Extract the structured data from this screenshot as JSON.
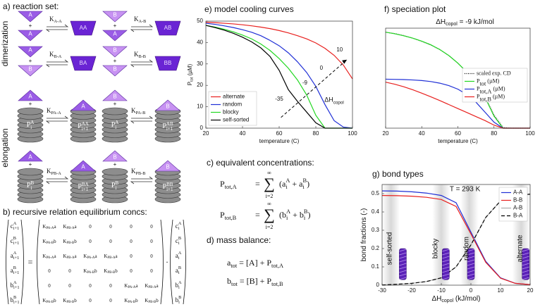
{
  "reaction_set": {
    "title": "a) reaction set:",
    "dimerization_label": "dimerization",
    "elongation_label": "elongation",
    "plus": "+",
    "dimerization": [
      {
        "reactants": [
          "A",
          "A"
        ],
        "constant": "K_{A-A}",
        "product": "AA"
      },
      {
        "reactants": [
          "B",
          "A"
        ],
        "constant": "K_{A-B}",
        "product": "AB"
      },
      {
        "reactants": [
          "A",
          "B"
        ],
        "constant": "K_{B-A}",
        "product": "BA"
      },
      {
        "reactants": [
          "B",
          "B"
        ],
        "constant": "K_{B-B}",
        "product": "BB"
      }
    ],
    "elongation": [
      {
        "monomer": "A",
        "polymer": "P_{i}^{A}",
        "constant": "K_{PA-A}",
        "product": "P_{i+1}^{AA}"
      },
      {
        "monomer": "B",
        "polymer": "P_{i}^{A}",
        "constant": "K_{PA-B}",
        "product": "P_{i+1}^{AB}"
      },
      {
        "monomer": "A",
        "polymer": "P_{i}^{B}",
        "constant": "K_{PB-A}",
        "product": "P_{i+1}^{BA}"
      },
      {
        "monomer": "B",
        "polymer": "P_{i}^{B}",
        "constant": "K_{PB-B}",
        "product": "P_{i+1}^{BB}"
      }
    ]
  },
  "recursive_relation": {
    "title": "b) recursive relation equilibrium concs:",
    "equals": "=",
    "dot": "·",
    "lhs": [
      "c_{i+1}^{A}",
      "c_{i+1}^{B}",
      "a_{i+1}^{A}",
      "a_{i+1}^{B}",
      "b_{i+1}^{A}",
      "b_{i+1}^{B}"
    ],
    "matrix": [
      [
        "K_{PA-A}a",
        "K_{PB-A}a",
        "0",
        "0",
        "0",
        "0"
      ],
      [
        "K_{PA-B}b",
        "K_{PB-B}b",
        "0",
        "0",
        "0",
        "0"
      ],
      [
        "K_{PA-A}a",
        "K_{PB-A}a",
        "K_{PA-A}a",
        "K_{PB-A}a",
        "0",
        "0"
      ],
      [
        "0",
        "0",
        "K_{PA-B}b",
        "K_{PB-B}b",
        "0",
        "0"
      ],
      [
        "0",
        "0",
        "0",
        "0",
        "K_{PA-A}a",
        "K_{PB-A}a"
      ],
      [
        "K_{PA-B}b",
        "K_{PB-B}b",
        "0",
        "0",
        "K_{PA-B}b",
        "K_{PB-B}b"
      ]
    ],
    "rhs": [
      "c_{i}^{A}",
      "c_{i}^{B}",
      "a_{i}^{A}",
      "a_{i}^{B}",
      "b_{i}^{A}",
      "b_{i}^{B}"
    ]
  },
  "equivalent_concentrations": {
    "title": "c) equivalent concentrations:",
    "equations": [
      {
        "lhs": "P_{tot,A}",
        "equals": "=",
        "sum": "∑",
        "upper": "∞",
        "lower": "i=2",
        "rhs": "(a_{i}^{A} + a_{i}^{B})"
      },
      {
        "lhs": "P_{tot,B}",
        "equals": "=",
        "sum": "∑",
        "upper": "∞",
        "lower": "i=2",
        "rhs": "(b_{i}^{A} + b_{i}^{B})"
      }
    ]
  },
  "mass_balance": {
    "title": "d) mass balance:",
    "equations": [
      "a_{tot} = [A] + P_{tot,A}",
      "b_{tot} = [B] + P_{tot,B}"
    ]
  },
  "chart_data": [
    {
      "type": "line",
      "title": "e) model cooling curves",
      "x_label": "temperature (C)",
      "y_label": "P_{tot} (µM)",
      "x": [
        20,
        25,
        30,
        35,
        40,
        45,
        50,
        55,
        60,
        65,
        70,
        75,
        80,
        85,
        90,
        95,
        100
      ],
      "series": [
        {
          "name": "alternate",
          "color": "#e8201e",
          "values": [
            49.5,
            49.3,
            49,
            48.7,
            48.3,
            47.8,
            47.2,
            46.5,
            45.6,
            44.5,
            43.2,
            41.7,
            39.8,
            37.3,
            34,
            29.5,
            23
          ]
        },
        {
          "name": "random",
          "color": "#1f2fd6",
          "values": [
            49,
            48.5,
            47.8,
            47,
            46,
            44.8,
            43.2,
            41,
            38.5,
            35.2,
            31,
            26,
            19.5,
            11,
            3.5,
            0.5,
            0
          ]
        },
        {
          "name": "blocky",
          "color": "#22d822",
          "values": [
            48,
            47.2,
            46.2,
            45,
            43.5,
            41.7,
            39.3,
            36.3,
            32.5,
            28,
            22.5,
            15.5,
            6,
            0,
            0,
            0,
            0
          ]
        },
        {
          "name": "self-sorted",
          "color": "#000000",
          "values": [
            48,
            47,
            45.8,
            44.3,
            42.5,
            40.3,
            37.5,
            33.5,
            27,
            18,
            12.5,
            7.5,
            2.5,
            0,
            0,
            0,
            0
          ]
        }
      ],
      "annotations": [
        "10",
        "0",
        "-9",
        "-35",
        "ΔH_{copol}"
      ],
      "xlim": [
        20,
        100
      ],
      "xticks": [
        20,
        40,
        60,
        80,
        100
      ],
      "ylim": [
        0,
        50
      ],
      "yticks": [
        0,
        10,
        20,
        30,
        40,
        50
      ],
      "legend": "lower left"
    },
    {
      "type": "line",
      "title": "f) speciation plot",
      "subtitle": "ΔH_{copol} = -9 kJ/mol",
      "x_label": "temperature (C)",
      "x": [
        20,
        25,
        30,
        35,
        40,
        45,
        50,
        55,
        60,
        65,
        70,
        75,
        80,
        85,
        90,
        95,
        100
      ],
      "series": [
        {
          "name": "scaled exp. CD",
          "color": "#000000",
          "style": "dotted",
          "values": [
            48,
            47.3,
            46.3,
            45,
            43.4,
            41.6,
            39.3,
            36.3,
            32.5,
            28,
            22.5,
            15.8,
            6.5,
            0.3,
            0,
            0,
            0
          ]
        },
        {
          "name": "P_{tot} (µM)",
          "color": "#22d822",
          "values": [
            48,
            47.2,
            46.2,
            45,
            43.5,
            41.7,
            39.3,
            36.3,
            32.5,
            28,
            22.5,
            15.5,
            6,
            0,
            0,
            0,
            0
          ]
        },
        {
          "name": "P_{tot,A} (µM)",
          "color": "#1f2fd6",
          "values": [
            24.5,
            24.4,
            24.3,
            24.1,
            23.8,
            23.3,
            22.5,
            21.3,
            19.5,
            16.8,
            13,
            8,
            3,
            0,
            0,
            0,
            0
          ]
        },
        {
          "name": "P_{tot,B} (µM)",
          "color": "#e8201e",
          "values": [
            23,
            22,
            20.7,
            19.2,
            17.5,
            15.7,
            13.8,
            11.8,
            9.8,
            7.8,
            5.8,
            3.8,
            1.5,
            0,
            0,
            0,
            0
          ]
        }
      ],
      "xlim": [
        20,
        100
      ],
      "xticks": [
        20,
        40,
        60,
        80,
        100
      ],
      "ylim": [
        0,
        50
      ],
      "legend": "right"
    },
    {
      "type": "line",
      "title": "g) bond types",
      "x_label": "ΔH_{copol} (kJ/mol)",
      "y_label": "bond fractions (-)",
      "x": [
        -30,
        -25,
        -20,
        -15,
        -10,
        -5,
        0,
        5,
        10,
        15,
        20
      ],
      "series": [
        {
          "name": "A-A",
          "color": "#1f2fd6",
          "values": [
            0.515,
            0.514,
            0.51,
            0.503,
            0.49,
            0.45,
            0.29,
            0.13,
            0.04,
            0.01,
            0.003
          ]
        },
        {
          "name": "B-B",
          "color": "#e8201e",
          "values": [
            0.49,
            0.489,
            0.486,
            0.48,
            0.468,
            0.43,
            0.28,
            0.125,
            0.038,
            0.01,
            0.003
          ]
        },
        {
          "name": "A-B",
          "color": "#aaaaaa",
          "values": [
            0.001,
            0.005,
            0.01,
            0.02,
            0.04,
            0.1,
            0.22,
            0.37,
            0.46,
            0.49,
            0.497
          ]
        },
        {
          "name": "B-A",
          "color": "#000000",
          "style": "dashed",
          "values": [
            0.001,
            0.005,
            0.01,
            0.02,
            0.04,
            0.1,
            0.22,
            0.37,
            0.46,
            0.49,
            0.497
          ]
        }
      ],
      "annotations": [
        "T = 293 K"
      ],
      "regime_labels": [
        "self-sorted",
        "blocky",
        "random",
        "alternate"
      ],
      "xlim": [
        -30,
        20
      ],
      "xticks": [
        -30,
        -20,
        -10,
        0,
        10,
        20
      ],
      "ylim": [
        0,
        0.55
      ],
      "yticks": [
        0,
        0.1,
        0.2,
        0.3,
        0.4,
        0.5
      ],
      "legend": "upper right"
    }
  ]
}
